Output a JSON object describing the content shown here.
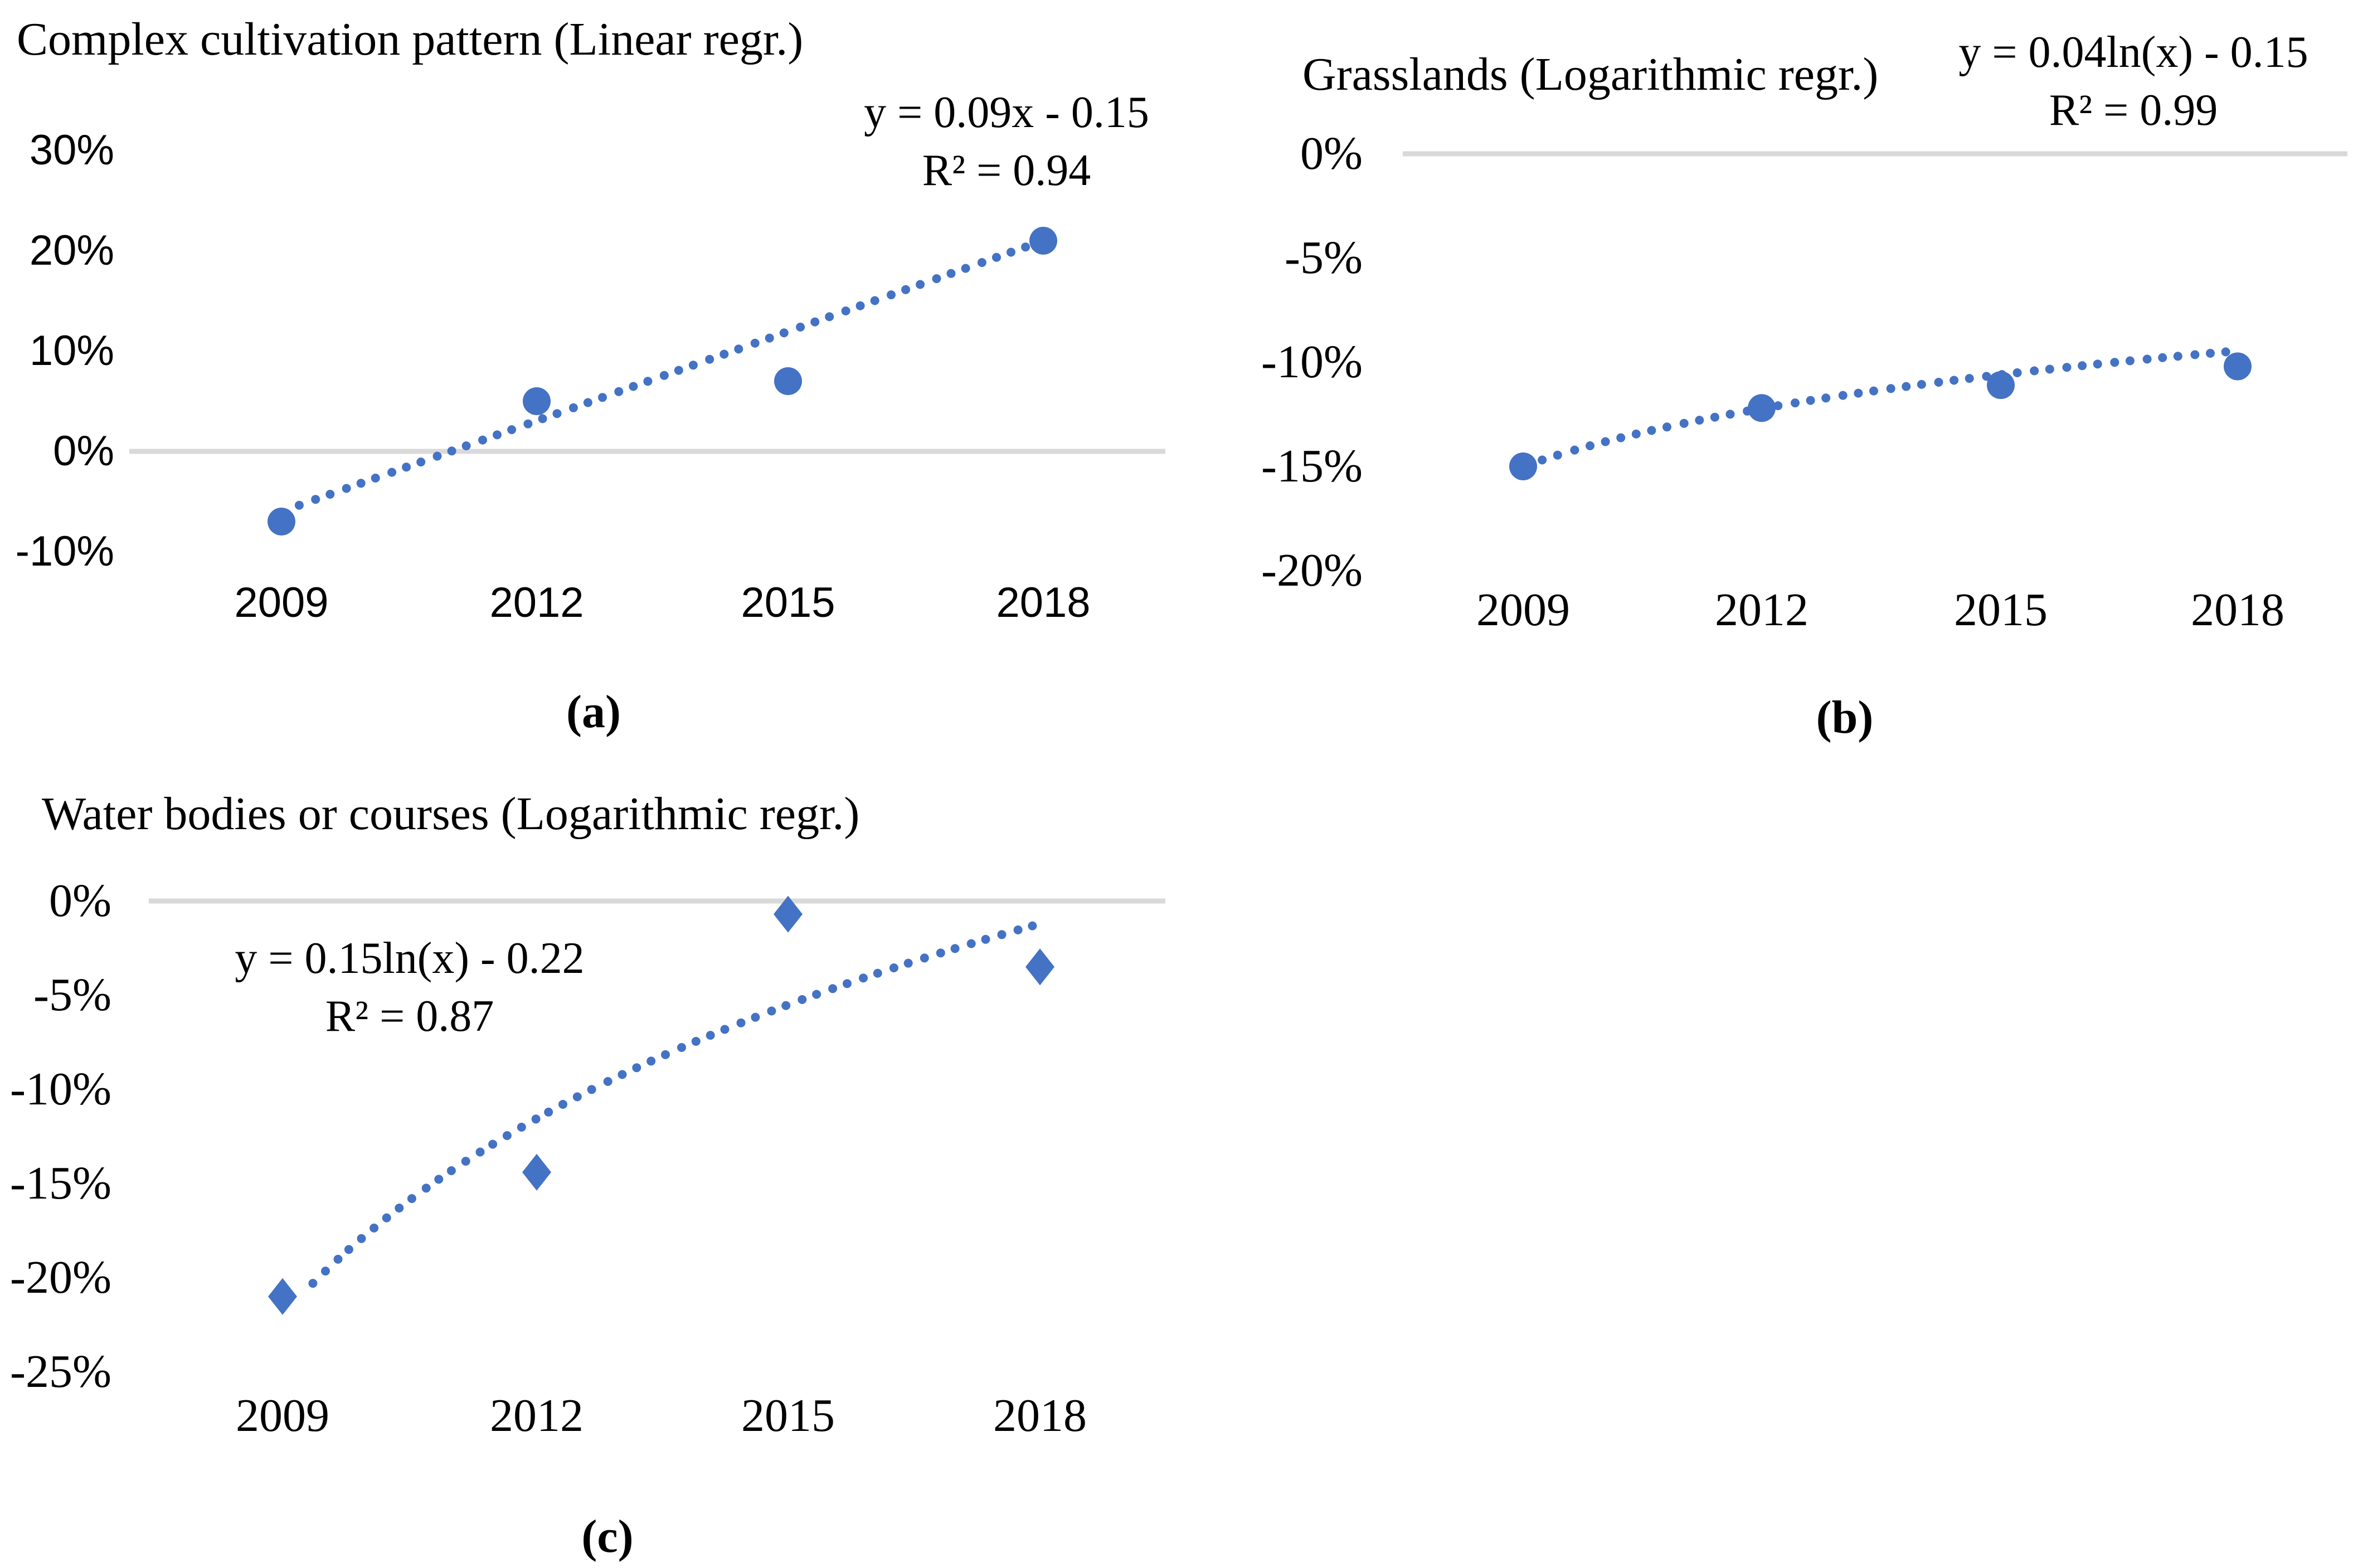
{
  "figure": {
    "background": "#FFFFFF"
  },
  "colors": {
    "accent_blue": "#4472C4",
    "zero_gridline": "#D9D9D9",
    "text": "#000000"
  },
  "chart_data": [
    {
      "id": "a",
      "type": "scatter",
      "title": "Complex cultivation pattern (Linear regr.)",
      "panel_label": "(a)",
      "marker": "circle",
      "x": [
        2009,
        2012,
        2015,
        2018
      ],
      "x_ticks": [
        "2009",
        "2012",
        "2015",
        "2018"
      ],
      "y_percent": [
        -7,
        5,
        7,
        21
      ],
      "y_ticks": [
        {
          "label": "30%",
          "value": 30
        },
        {
          "label": "20%",
          "value": 20
        },
        {
          "label": "10%",
          "value": 10
        },
        {
          "label": "0%",
          "value": 0
        },
        {
          "label": "-10%",
          "value": -10
        }
      ],
      "ylim": [
        -10,
        30
      ],
      "grid": "zero-line-only",
      "legend": "none",
      "trendline": {
        "type": "linear",
        "label": "y = 0.09x - 0.15",
        "r2_label": "R² = 0.94",
        "slope": 0.09,
        "intercept": -0.15,
        "r2": 0.94,
        "style": "dotted",
        "t_range": [
          1.07,
          3.93
        ]
      }
    },
    {
      "id": "b",
      "type": "scatter",
      "title": "Grasslands (Logarithmic regr.)",
      "panel_label": "(b)",
      "marker": "circle",
      "x": [
        2009,
        2012,
        2015,
        2018
      ],
      "x_ticks": [
        "2009",
        "2012",
        "2015",
        "2018"
      ],
      "y_percent": [
        -15,
        -12.2,
        -11.1,
        -10.2
      ],
      "y_ticks": [
        {
          "label": "0%",
          "value": 0
        },
        {
          "label": "-5%",
          "value": -5
        },
        {
          "label": "-10%",
          "value": -10
        },
        {
          "label": "-15%",
          "value": -15
        },
        {
          "label": "-20%",
          "value": -20
        }
      ],
      "ylim": [
        -20,
        0
      ],
      "grid": "zero-line-only",
      "legend": "none",
      "trendline": {
        "type": "logarithmic",
        "label": "y = 0.04ln(x) - 0.15",
        "r2_label": "R² = 0.99",
        "coefficient": 0.04,
        "intercept": -0.15,
        "r2": 0.99,
        "style": "dotted",
        "t_range": [
          1.08,
          3.95
        ]
      }
    },
    {
      "id": "c",
      "type": "scatter",
      "title": "Water bodies or courses (Logarithmic regr.)",
      "panel_label": "(c)",
      "marker": "diamond",
      "x": [
        2009,
        2012,
        2015,
        2018
      ],
      "x_ticks": [
        "2009",
        "2012",
        "2015",
        "2018"
      ],
      "y_percent": [
        -21,
        -14.4,
        -0.7,
        -3.5
      ],
      "y_ticks": [
        {
          "label": "0%",
          "value": 0
        },
        {
          "label": "-5%",
          "value": -5
        },
        {
          "label": "-10%",
          "value": -10
        },
        {
          "label": "-15%",
          "value": -15
        },
        {
          "label": "-20%",
          "value": -20
        },
        {
          "label": "-25%",
          "value": -25
        }
      ],
      "ylim": [
        -25,
        0
      ],
      "grid": "zero-line-only",
      "legend": "none",
      "trendline": {
        "type": "logarithmic",
        "label": "y = 0.15ln(x) - 0.22",
        "r2_label": "R² = 0.87",
        "coefficient": 0.15,
        "intercept": -0.22,
        "r2": 0.87,
        "style": "dotted",
        "t_range": [
          1.12,
          3.97
        ]
      }
    }
  ]
}
